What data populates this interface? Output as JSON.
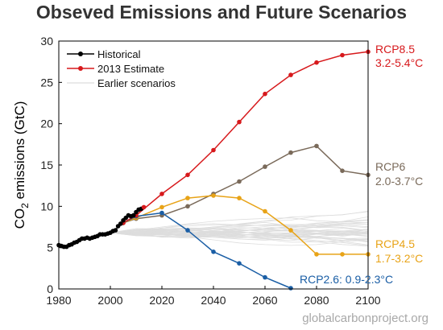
{
  "title": "Obseved Emissions and Future Scenarios",
  "credit": "globalcarbonproject.org",
  "chart_data": {
    "type": "line",
    "title": "Obseved Emissions and Future Scenarios",
    "xlabel": "",
    "ylabel": {
      "prefix": "CO",
      "sub": "2",
      "suffix": " emissions (GtC)"
    },
    "xlim": [
      1980,
      2100
    ],
    "ylim": [
      0,
      30
    ],
    "xticks": [
      1980,
      2000,
      2020,
      2040,
      2060,
      2080,
      2100
    ],
    "yticks": [
      0,
      5,
      10,
      15,
      20,
      25,
      30
    ],
    "grid": false,
    "legend": {
      "position": "top-left",
      "entries": [
        {
          "label": "Historical",
          "color": "#000000",
          "marker": "dot"
        },
        {
          "label": "2013 Estimate",
          "color": "#d7191c",
          "marker": "dot"
        },
        {
          "label": "Earlier scenarios",
          "color": "#dddddd",
          "marker": "none"
        }
      ]
    },
    "series": [
      {
        "name": "Historical",
        "color": "#000000",
        "marker": true,
        "x": [
          1980,
          1981,
          1982,
          1983,
          1984,
          1985,
          1986,
          1987,
          1988,
          1989,
          1990,
          1991,
          1992,
          1993,
          1994,
          1995,
          1996,
          1997,
          1998,
          1999,
          2000,
          2001,
          2002,
          2003,
          2004,
          2005,
          2006,
          2007,
          2008,
          2009,
          2010,
          2011,
          2012
        ],
        "y": [
          5.3,
          5.2,
          5.1,
          5.1,
          5.3,
          5.4,
          5.6,
          5.7,
          5.9,
          6.1,
          6.1,
          6.2,
          6.1,
          6.2,
          6.3,
          6.4,
          6.6,
          6.6,
          6.6,
          6.7,
          6.8,
          7.0,
          7.1,
          7.6,
          7.9,
          8.3,
          8.6,
          8.9,
          8.8,
          8.9,
          9.3,
          9.6,
          9.7
        ]
      },
      {
        "name": "2013 Estimate",
        "color": "#d7191c",
        "marker": true,
        "x": [
          2013
        ],
        "y": [
          9.9
        ]
      },
      {
        "name": "RCP8.5",
        "labels": [
          "RCP8.5",
          "3.2-5.4°C"
        ],
        "color": "#d7191c",
        "marker": true,
        "x": [
          2005,
          2010,
          2020,
          2030,
          2040,
          2050,
          2060,
          2070,
          2080,
          2090,
          2100
        ],
        "y": [
          8.0,
          8.9,
          11.5,
          13.8,
          16.8,
          20.2,
          23.6,
          25.9,
          27.4,
          28.3,
          28.7
        ]
      },
      {
        "name": "RCP6",
        "labels": [
          "RCP6",
          "2.0-3.7°C"
        ],
        "color": "#7a6a5a",
        "marker": true,
        "x": [
          2005,
          2010,
          2020,
          2030,
          2040,
          2050,
          2060,
          2070,
          2080,
          2090,
          2100
        ],
        "y": [
          8.0,
          8.5,
          8.9,
          10.0,
          11.5,
          13.0,
          14.8,
          16.5,
          17.3,
          14.3,
          13.8
        ]
      },
      {
        "name": "RCP4.5",
        "labels": [
          "RCP4.5",
          "1.7-3.2°C"
        ],
        "color": "#e8a317",
        "marker": true,
        "x": [
          2005,
          2010,
          2020,
          2030,
          2040,
          2050,
          2060,
          2070,
          2080,
          2090,
          2100
        ],
        "y": [
          8.0,
          8.6,
          9.9,
          11.0,
          11.3,
          11.0,
          9.4,
          7.1,
          4.2,
          4.2,
          4.2
        ]
      },
      {
        "name": "RCP2.6",
        "labels": [
          "RCP2.6: 0.9-2.3°C"
        ],
        "color": "#1a5ea5",
        "marker": true,
        "x": [
          2005,
          2010,
          2020,
          2030,
          2040,
          2050,
          2060,
          2070
        ],
        "y": [
          8.0,
          8.8,
          9.2,
          7.1,
          4.5,
          3.1,
          1.4,
          0.1
        ]
      }
    ]
  }
}
